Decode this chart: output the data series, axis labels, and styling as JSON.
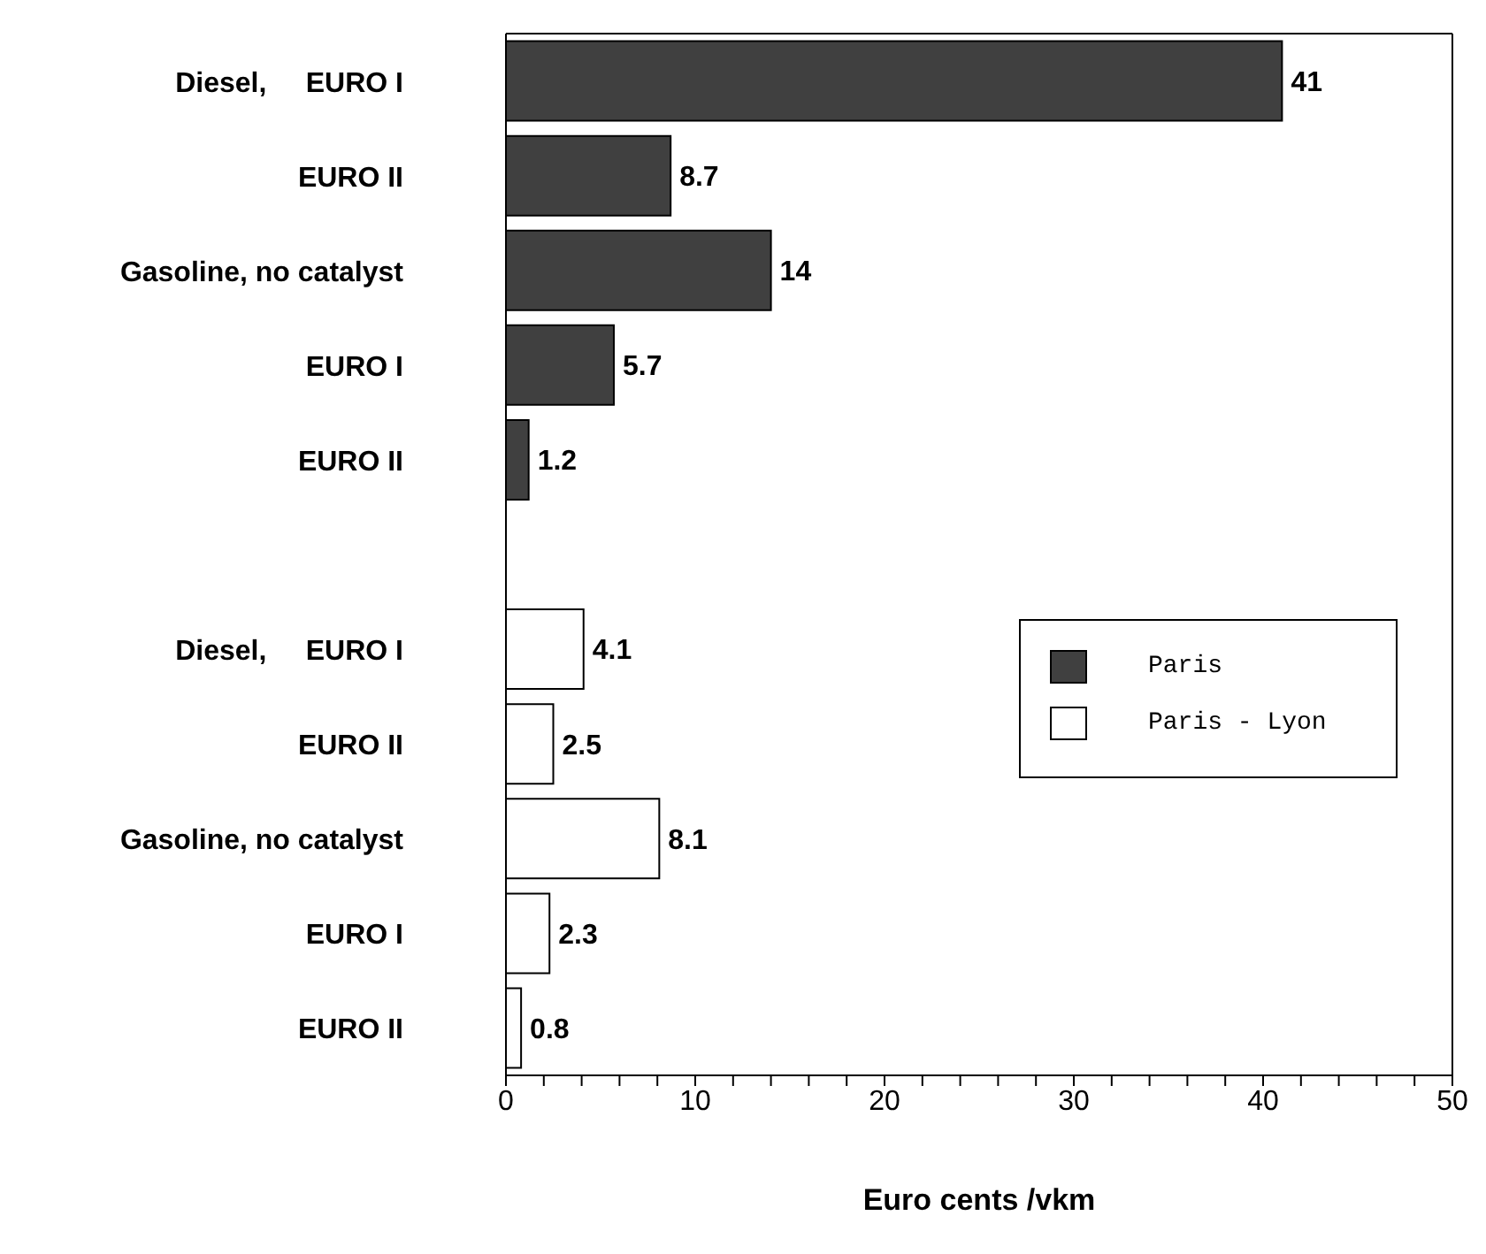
{
  "chart_data": {
    "type": "bar",
    "orientation": "horizontal",
    "stacked": true,
    "xlabel": "Euro cents /vkm",
    "categories": [
      "Diesel,     EURO I",
      "EURO II",
      "Gasoline, no catalyst",
      "EURO I",
      "EURO II",
      null,
      "Diesel,     EURO I",
      "EURO II",
      "Gasoline, no catalyst",
      "EURO I",
      "EURO II"
    ],
    "series": [
      {
        "name": "Paris",
        "color": "#404040",
        "values": [
          41,
          8.7,
          14,
          5.7,
          1.2,
          null,
          null,
          null,
          null,
          null,
          null
        ]
      },
      {
        "name": "Paris - Lyon",
        "color": "#ffffff",
        "values": [
          null,
          null,
          null,
          null,
          null,
          null,
          4.1,
          2.5,
          8.1,
          2.3,
          0.8
        ]
      }
    ],
    "xlim": [
      0,
      50
    ],
    "xticks": [
      0,
      {
        "value": 2,
        "label": null
      },
      {
        "value": 4,
        "label": null
      },
      {
        "value": 6,
        "label": null
      },
      {
        "value": 8,
        "label": null
      },
      10,
      {
        "value": 12,
        "label": null
      },
      {
        "value": 14,
        "label": null
      },
      {
        "value": 16,
        "label": null
      },
      {
        "value": 18,
        "label": null
      },
      20,
      {
        "value": 22,
        "label": null
      },
      {
        "value": 24,
        "label": null
      },
      {
        "value": 26,
        "label": null
      },
      {
        "value": 28,
        "label": null
      },
      30,
      {
        "value": 32,
        "label": null
      },
      {
        "value": 34,
        "label": null
      },
      {
        "value": 36,
        "label": null
      },
      {
        "value": 38,
        "label": null
      },
      40,
      {
        "value": 42,
        "label": null
      },
      {
        "value": 44,
        "label": null
      },
      {
        "value": 46,
        "label": null
      },
      {
        "value": 48,
        "label": null
      },
      50
    ],
    "data_labels": true,
    "grid": false,
    "legend": "right"
  }
}
